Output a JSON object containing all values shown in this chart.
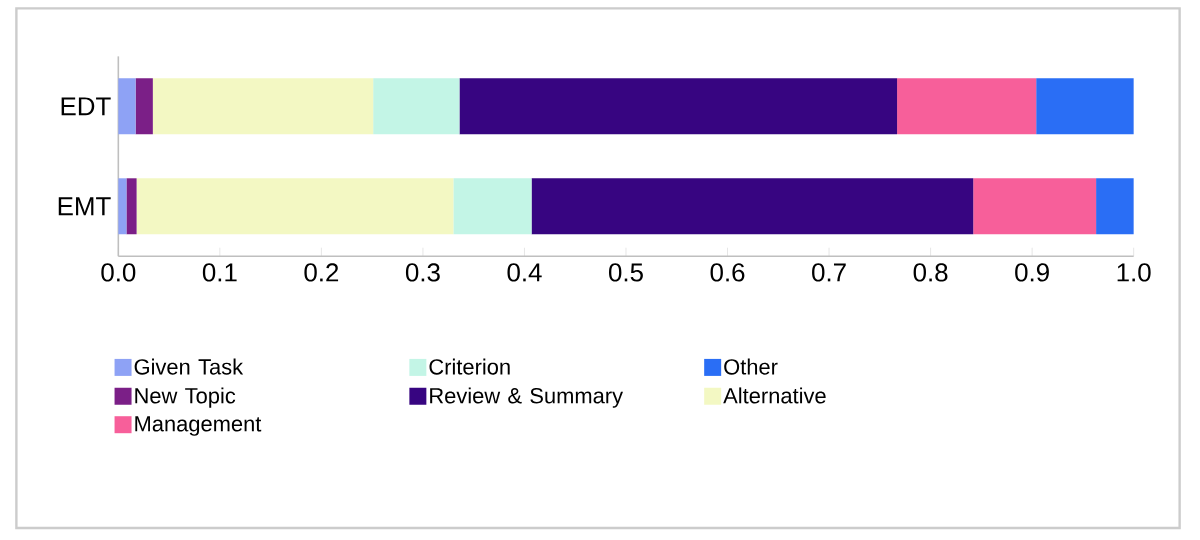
{
  "chart_data": {
    "type": "bar",
    "orientation": "horizontal",
    "stacked": true,
    "categories": [
      "EDT",
      "EMT"
    ],
    "xlim": [
      0,
      1
    ],
    "xticks": [
      {
        "value": 0,
        "label": "0.0"
      },
      0.1,
      0.2,
      0.3,
      0.4,
      0.5,
      0.6,
      0.7,
      0.8,
      0.9,
      {
        "value": 1,
        "label": "1.0"
      }
    ],
    "legend": "bottom",
    "series": [
      {
        "name": "Given Task",
        "color": "#8ea2f5",
        "values": [
          0.017,
          0.008
        ]
      },
      {
        "name": "New Topic",
        "color": "#7b1f87",
        "values": [
          0.017,
          0.01
        ]
      },
      {
        "name": "Alternative",
        "color": "#f3f8c3",
        "values": [
          0.217,
          0.312
        ]
      },
      {
        "name": "Criterion",
        "color": "#c3f5e6",
        "values": [
          0.085,
          0.077
        ]
      },
      {
        "name": "Review & Summary",
        "color": "#370581",
        "values": [
          0.431,
          0.435
        ]
      },
      {
        "name": "Management",
        "color": "#f75f9a",
        "values": [
          0.137,
          0.121
        ]
      },
      {
        "name": "Other",
        "color": "#2a6ef5",
        "values": [
          0.096,
          0.037
        ]
      }
    ]
  }
}
